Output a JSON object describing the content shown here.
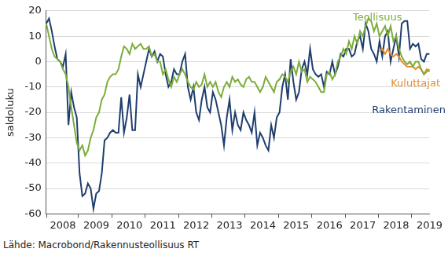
{
  "chart_data": {
    "type": "line",
    "y_label": "saldoluku",
    "source": "Lähde: Macrobond/Rakennusteollisuus RT",
    "grid": true,
    "categories": [
      null,
      null,
      null,
      null,
      null,
      null,
      "2008",
      null,
      null,
      null,
      null,
      null,
      null,
      null,
      null,
      null,
      null,
      null,
      "2009",
      null,
      null,
      null,
      null,
      null,
      null,
      null,
      null,
      null,
      null,
      null,
      "2010",
      null,
      null,
      null,
      null,
      null,
      null,
      null,
      null,
      null,
      null,
      null,
      "2011",
      null,
      null,
      null,
      null,
      null,
      null,
      null,
      null,
      null,
      null,
      null,
      "2012",
      null,
      null,
      null,
      null,
      null,
      null,
      null,
      null,
      null,
      null,
      null,
      "2013",
      null,
      null,
      null,
      null,
      null,
      null,
      null,
      null,
      null,
      null,
      null,
      "2014",
      null,
      null,
      null,
      null,
      null,
      null,
      null,
      null,
      null,
      null,
      null,
      "2015",
      null,
      null,
      null,
      null,
      null,
      null,
      null,
      null,
      null,
      null,
      null,
      "2016",
      null,
      null,
      null,
      null,
      null,
      null,
      null,
      null,
      null,
      null,
      null,
      "2017",
      null,
      null,
      null,
      null,
      null,
      null,
      null,
      null,
      null,
      null,
      null,
      "2018",
      null,
      null,
      null,
      null,
      null,
      null,
      null,
      null,
      null,
      null,
      null,
      "2019"
    ],
    "ylim": [
      -60,
      20
    ],
    "yticks": [
      -60,
      -50,
      -40,
      -30,
      -20,
      -10,
      0,
      10,
      20
    ],
    "series": [
      {
        "name": "Teollisuus",
        "color": "#7cad3a",
        "values": [
          15,
          10,
          5,
          2,
          1,
          0,
          -3,
          -5,
          -10,
          -18,
          -25,
          -32,
          -35,
          -33,
          -37,
          -35,
          -30,
          -27,
          -22,
          -20,
          -15,
          -13,
          -8,
          -6,
          -5,
          -5,
          -3,
          2,
          6,
          5,
          3,
          7,
          5,
          6,
          7,
          5,
          5,
          6,
          2,
          3,
          0,
          0,
          -5,
          -3,
          -7,
          -10,
          -6,
          -8,
          -5,
          -3,
          -5,
          -8,
          -10,
          -11,
          -8,
          -10,
          -9,
          -5,
          -10,
          -8,
          -10,
          -8,
          -12,
          -14,
          -10,
          -8,
          -10,
          -6,
          -8,
          -7,
          -9,
          -10,
          -7,
          -6,
          -8,
          -8,
          -10,
          -12,
          -10,
          -6,
          -8,
          -10,
          -12,
          -8,
          -7,
          -5,
          -6,
          -8,
          -4,
          -2,
          -5,
          0,
          -4,
          -3,
          -8,
          -6,
          -7,
          -8,
          -10,
          -12,
          -12,
          -5,
          -4,
          -7,
          -5,
          0,
          2,
          5,
          3,
          8,
          5,
          10,
          7,
          12,
          10,
          14,
          17,
          16,
          12,
          15,
          10,
          12,
          14,
          10,
          14,
          8,
          10,
          5,
          2,
          0,
          -1,
          0,
          -2,
          0,
          0,
          -3,
          -5,
          -4,
          -3
        ]
      },
      {
        "name": "Kuluttajat",
        "color": "#e8892b",
        "values": [
          null,
          null,
          null,
          null,
          null,
          null,
          null,
          null,
          null,
          null,
          null,
          null,
          null,
          null,
          null,
          null,
          null,
          null,
          null,
          null,
          null,
          null,
          null,
          null,
          null,
          null,
          null,
          null,
          null,
          null,
          null,
          null,
          null,
          null,
          null,
          null,
          null,
          null,
          null,
          null,
          null,
          null,
          null,
          null,
          null,
          null,
          null,
          null,
          null,
          null,
          null,
          null,
          null,
          null,
          null,
          null,
          null,
          null,
          null,
          null,
          null,
          null,
          null,
          null,
          null,
          null,
          null,
          null,
          null,
          null,
          null,
          null,
          null,
          null,
          null,
          null,
          null,
          null,
          null,
          null,
          null,
          null,
          null,
          null,
          null,
          null,
          null,
          null,
          null,
          null,
          null,
          null,
          null,
          null,
          null,
          null,
          null,
          null,
          null,
          null,
          null,
          null,
          null,
          null,
          null,
          null,
          null,
          null,
          null,
          null,
          null,
          null,
          null,
          null,
          null,
          null,
          null,
          null,
          null,
          null,
          4,
          5,
          3,
          5,
          3,
          2,
          3,
          2,
          0,
          -1,
          -2,
          -2,
          -2,
          -3,
          -2,
          -3,
          -5,
          -3,
          -4
        ]
      },
      {
        "name": "Rakentaminen",
        "color": "#1f3e6e",
        "values": [
          15,
          17,
          12,
          6,
          1,
          0,
          -2,
          3,
          -25,
          -12,
          -18,
          -22,
          -44,
          -53,
          -52,
          -48,
          -50,
          -58,
          -52,
          -51,
          -44,
          -31,
          -30,
          -28,
          -27,
          -28,
          -28,
          -14,
          -28,
          -22,
          -13,
          -27,
          -27,
          -5,
          -10,
          -5,
          0,
          5,
          2,
          4,
          0,
          3,
          2,
          -5,
          -10,
          -8,
          -3,
          -5,
          -5,
          0,
          3,
          -10,
          -15,
          -10,
          -20,
          -23,
          -15,
          -10,
          -18,
          -20,
          -12,
          -15,
          -20,
          -25,
          -33,
          -22,
          -15,
          -27,
          -20,
          -25,
          -27,
          -20,
          -23,
          -25,
          -28,
          -20,
          -33,
          -28,
          -30,
          -33,
          -35,
          -25,
          -30,
          -22,
          -20,
          -10,
          -5,
          -15,
          1,
          -8,
          -15,
          -12,
          -3,
          0,
          -5,
          5,
          -3,
          -5,
          -6,
          -5,
          -10,
          -4,
          -5,
          0,
          -5,
          -2,
          3,
          2,
          5,
          5,
          2,
          3,
          8,
          10,
          5,
          15,
          12,
          5,
          3,
          0,
          8,
          2,
          10,
          12,
          0,
          5,
          10,
          2,
          15,
          16,
          16,
          5,
          7,
          6,
          7,
          1,
          0,
          3,
          3
        ]
      }
    ]
  }
}
